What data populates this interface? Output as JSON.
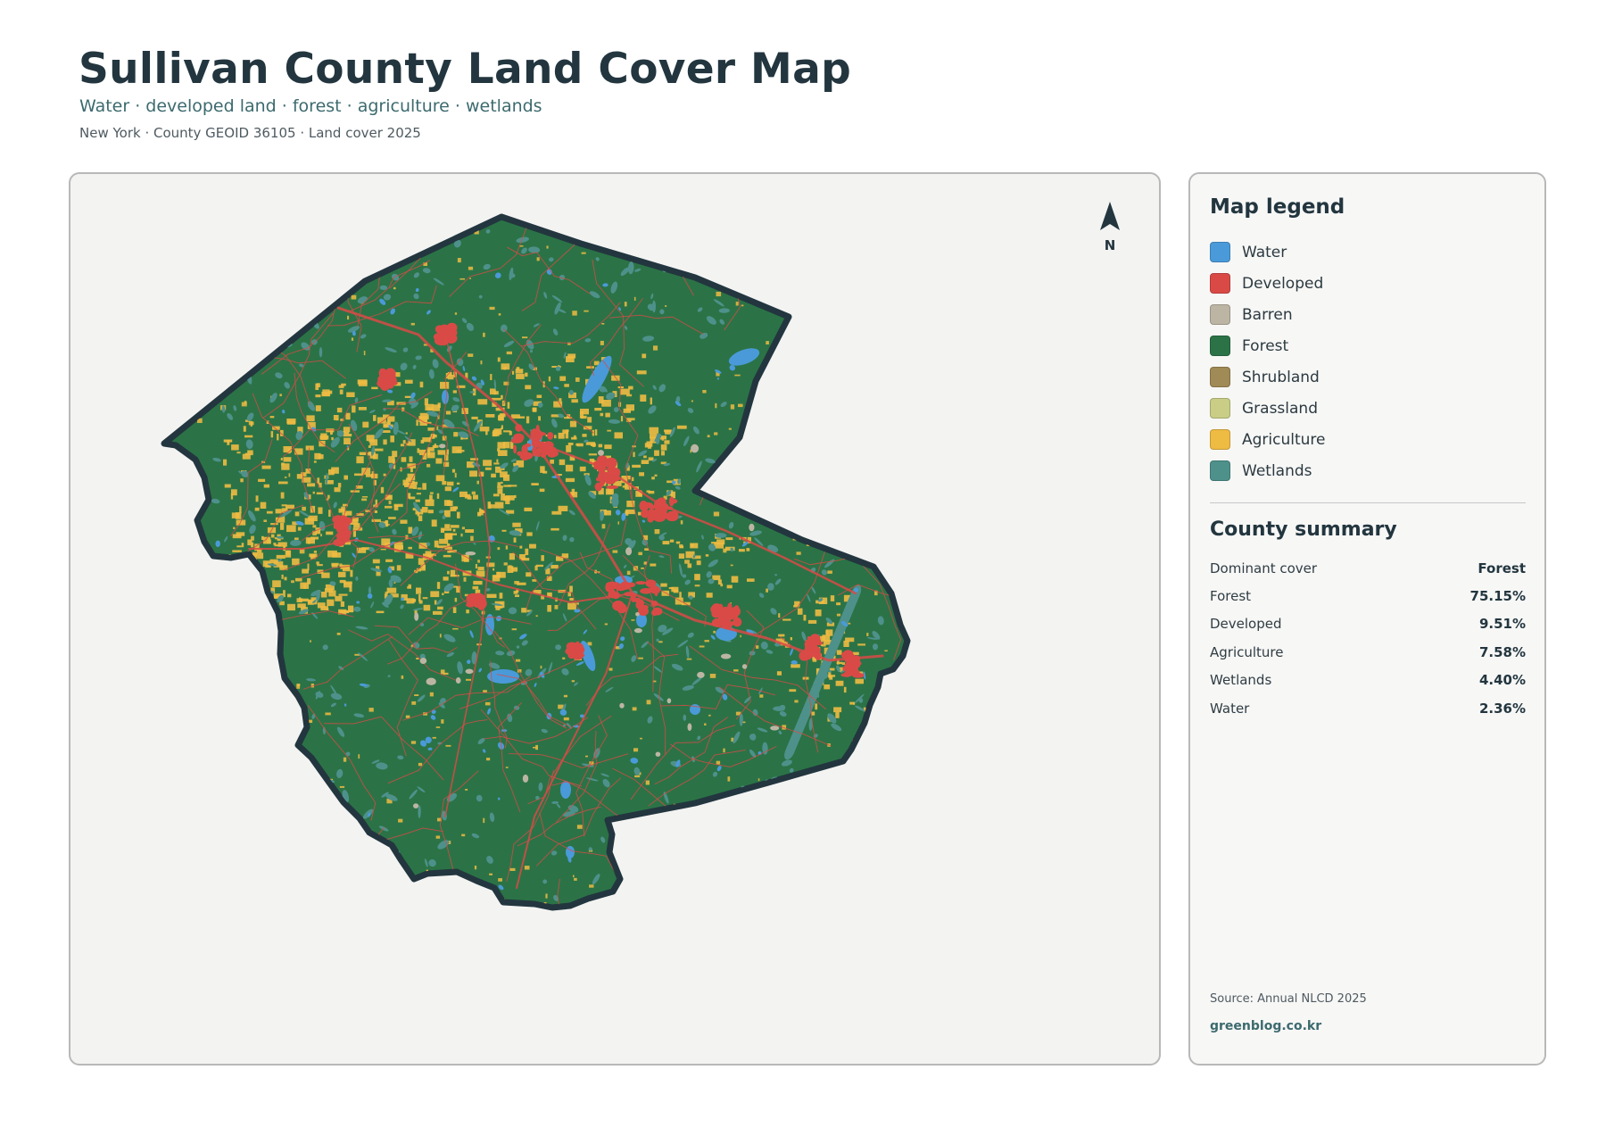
{
  "header": {
    "title": "Sullivan County Land Cover Map",
    "subtitle": "Water · developed land · forest · agriculture · wetlands",
    "meta": "New York · County GEOID 36105 · Land cover 2025"
  },
  "map": {
    "north_label": "N",
    "colors": {
      "water": "#4a9ad9",
      "developed": "#d94a46",
      "barren": "#bdb5a3",
      "forest": "#2b7346",
      "shrubland": "#a08a55",
      "grassland": "#c9cd86",
      "agriculture": "#eebb43",
      "wetlands": "#4e918b",
      "outline": "#23363f",
      "background": "#f3f3f2"
    }
  },
  "legend": {
    "title": "Map legend",
    "items": [
      {
        "label": "Water",
        "color": "#4a9ad9"
      },
      {
        "label": "Developed",
        "color": "#d94a46"
      },
      {
        "label": "Barren",
        "color": "#bdb5a3"
      },
      {
        "label": "Forest",
        "color": "#2b7346"
      },
      {
        "label": "Shrubland",
        "color": "#a08a55"
      },
      {
        "label": "Grassland",
        "color": "#c9cd86"
      },
      {
        "label": "Agriculture",
        "color": "#eebb43"
      },
      {
        "label": "Wetlands",
        "color": "#4e918b"
      }
    ]
  },
  "summary": {
    "title": "County summary",
    "rows": [
      {
        "key": "Dominant cover",
        "value": "Forest"
      },
      {
        "key": "Forest",
        "value": "75.15%"
      },
      {
        "key": "Developed",
        "value": "9.51%"
      },
      {
        "key": "Agriculture",
        "value": "7.58%"
      },
      {
        "key": "Wetlands",
        "value": "4.40%"
      },
      {
        "key": "Water",
        "value": "2.36%"
      }
    ]
  },
  "footer": {
    "source": "Source: Annual NLCD 2025",
    "site": "greenblog.co.kr"
  }
}
